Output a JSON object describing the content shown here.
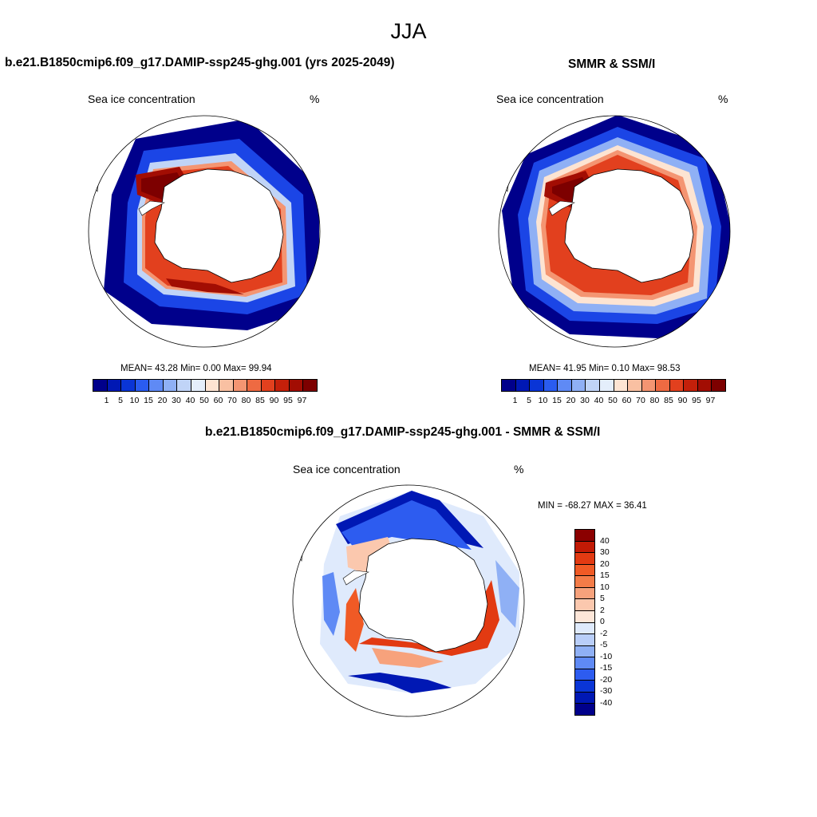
{
  "figure": {
    "season": "JJA"
  },
  "panels": {
    "model": {
      "title": "b.e21.B1850cmip6.f09_g17.DAMIP-ssp245-ghg.001 (yrs 2025-2049)",
      "variable_label": "Sea ice concentration",
      "units": "%",
      "stats": "MEAN=  43.28  Min=   0.00  Max=  99.94",
      "stats_values": {
        "mean": 43.28,
        "min": 0.0,
        "max": 99.94
      }
    },
    "obs": {
      "title": "SMMR & SSM/I",
      "variable_label": "Sea ice concentration",
      "units": "%",
      "stats": "MEAN=  41.95  Min=   0.10  Max=  98.53",
      "stats_values": {
        "mean": 41.95,
        "min": 0.1,
        "max": 98.53
      }
    },
    "diff": {
      "title": "b.e21.B1850cmip6.f09_g17.DAMIP-ssp245-ghg.001 - SMMR & SSM/I",
      "variable_label": "Sea ice concentration",
      "units": "%",
      "stats": "MIN = -68.27 MAX =  36.41",
      "stats_values": {
        "min": -68.27,
        "max": 36.41
      }
    }
  },
  "colorbars": {
    "concentration": {
      "levels": [
        "1",
        "5",
        "10",
        "15",
        "20",
        "30",
        "40",
        "50",
        "60",
        "70",
        "80",
        "85",
        "90",
        "95",
        "97"
      ],
      "colors": [
        "#00008b",
        "#0018b4",
        "#0a35d6",
        "#2a5cf0",
        "#5f8af5",
        "#8fb0f5",
        "#c0d4f7",
        "#e4eefb",
        "#fde4d2",
        "#f9c0a2",
        "#f49572",
        "#ee6a42",
        "#e2401e",
        "#c4200a",
        "#a20d03",
        "#7d0000"
      ]
    },
    "difference": {
      "levels": [
        "40",
        "30",
        "20",
        "15",
        "10",
        "5",
        "2",
        "0",
        "-2",
        "-5",
        "-10",
        "-15",
        "-20",
        "-30",
        "-40"
      ],
      "colors": [
        "#8b0000",
        "#c21a05",
        "#e23a12",
        "#f05a25",
        "#f47c48",
        "#f7a27c",
        "#fbc8ae",
        "#fde6d8",
        "#dfeafc",
        "#b9cef9",
        "#8fb0f5",
        "#5f8af5",
        "#2d5cf0",
        "#0a35d6",
        "#0018b4",
        "#00008b"
      ]
    }
  },
  "maps": {
    "projection": "south-polar-stereographic",
    "region": "Southern Ocean / Antarctica"
  }
}
